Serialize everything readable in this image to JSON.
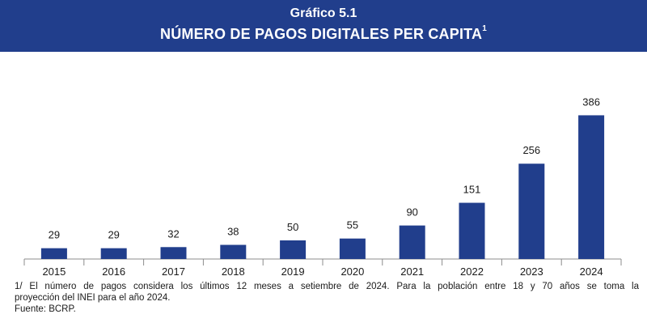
{
  "header": {
    "figure_label": "Gráfico 5.1",
    "title": "NÚMERO DE PAGOS DIGITALES PER CAPITA",
    "title_footnote": "1"
  },
  "chart_data": {
    "type": "bar",
    "title": "NÚMERO DE PAGOS DIGITALES PER CAPITA",
    "categories": [
      "2015",
      "2016",
      "2017",
      "2018",
      "2019",
      "2020",
      "2021",
      "2022",
      "2023",
      "2024"
    ],
    "values": [
      29,
      29,
      32,
      38,
      50,
      55,
      90,
      151,
      256,
      386
    ],
    "xlabel": "",
    "ylabel": "",
    "ylim": [
      0,
      400
    ],
    "grid": false,
    "legend": "none",
    "bar_color": "#213e8c"
  },
  "notes": {
    "footnote_line1": "1/ El número de pagos considera los últimos 12 meses a setiembre de 2024. Para la población entre 18 y 70 años se toma la",
    "footnote_line2": "proyección del INEI para el año 2024.",
    "source": "Fuente: BCRP."
  },
  "colors": {
    "header_bg": "#213e8c",
    "axis": "#8c8c8c"
  }
}
